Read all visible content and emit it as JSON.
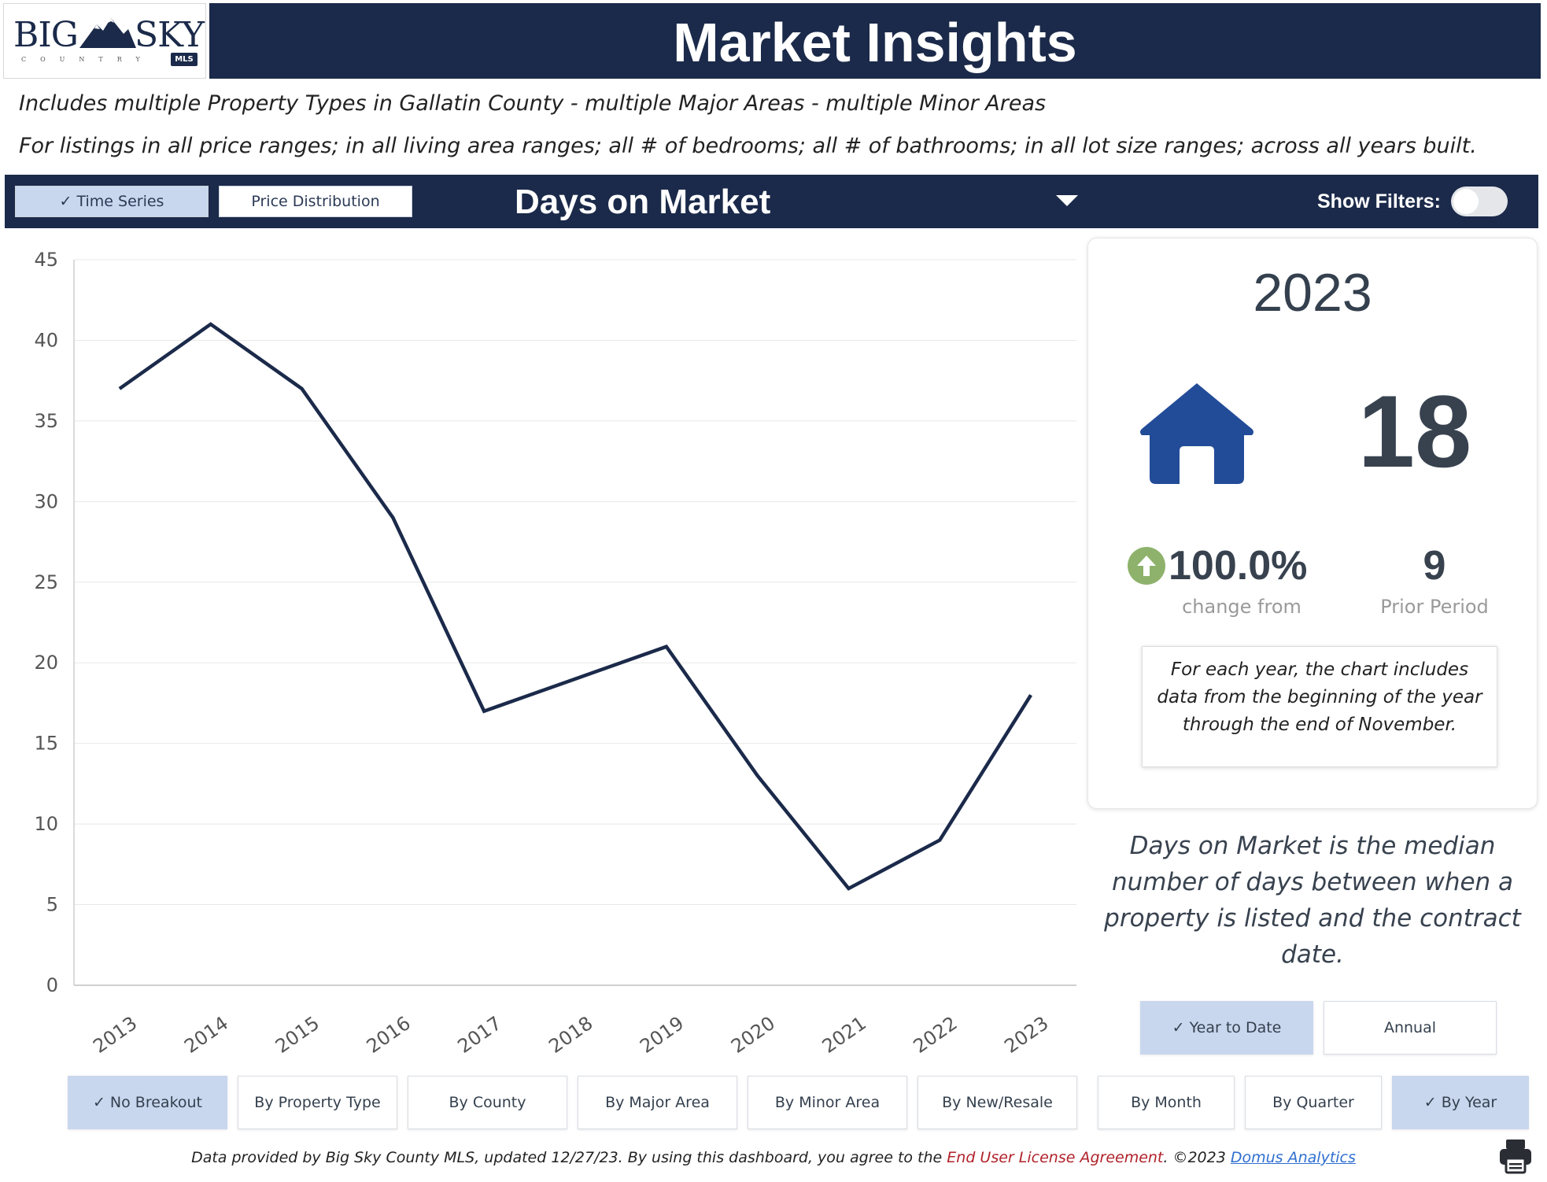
{
  "header": {
    "logo_big": "BIG",
    "logo_sky": "SKY",
    "logo_country": "COUNTRY",
    "logo_mls": "MLS",
    "title": "Market Insights"
  },
  "description": {
    "line1": "Includes multiple Property Types in Gallatin County - multiple Major Areas - multiple Minor Areas",
    "line2": "For listings in all price ranges; in all living area ranges; all # of bedrooms; all # of bathrooms; in all lot size ranges; across all years built."
  },
  "controls": {
    "time_series": "✓ Time Series",
    "price_distribution": "Price Distribution",
    "metric": "Days on Market",
    "show_filters": "Show Filters:",
    "show_filters_on": false
  },
  "chart_data": {
    "type": "line",
    "title": "",
    "xlabel": "",
    "ylabel": "",
    "x": [
      "2013",
      "2014",
      "2015",
      "2016",
      "2017",
      "2018",
      "2019",
      "2020",
      "2021",
      "2022",
      "2023"
    ],
    "series": [
      {
        "values": [
          37,
          41,
          37,
          29,
          17,
          19,
          21,
          13,
          6,
          9,
          18
        ]
      }
    ],
    "yticks": [
      0,
      5,
      10,
      15,
      20,
      25,
      30,
      35,
      40,
      45
    ],
    "ylim": [
      0,
      45
    ],
    "grid": true,
    "line_color": "#1b2a4a"
  },
  "summary": {
    "year": "2023",
    "value": "18",
    "change": "100.0%",
    "change_label": "change from",
    "prior": "9",
    "prior_label": "Prior Period",
    "note": "For each year, the chart includes data from the beginning of the year through the end of November.",
    "icon": "house-icon",
    "trend_icon": "up-arrow-icon",
    "trend_color": "#8eb26b"
  },
  "definition": "Days on Market is the median number of days between when a property is listed and the contract date.",
  "period_buttons": {
    "ytd": "✓ Year to Date",
    "annual": "Annual"
  },
  "breakout_buttons": {
    "no_breakout": "✓ No Breakout",
    "by_property_type": "By Property Type",
    "by_county": "By County",
    "by_major_area": "By Major Area",
    "by_minor_area": "By Minor Area",
    "by_new_resale": "By New/Resale"
  },
  "granularity_buttons": {
    "by_month": "By Month",
    "by_quarter": "By Quarter",
    "by_year": "✓ By Year"
  },
  "footer": {
    "text_before": "Data provided by Big Sky County MLS, updated 12/27/23.  By using this dashboard, you agree to the ",
    "eula": "End User License Agreement",
    "text_middle": ".  ©2023 ",
    "link": "Domus Analytics"
  },
  "colors": {
    "navy": "#1b2a4a",
    "active_button": "#c9d7ee",
    "house": "#224c98"
  }
}
